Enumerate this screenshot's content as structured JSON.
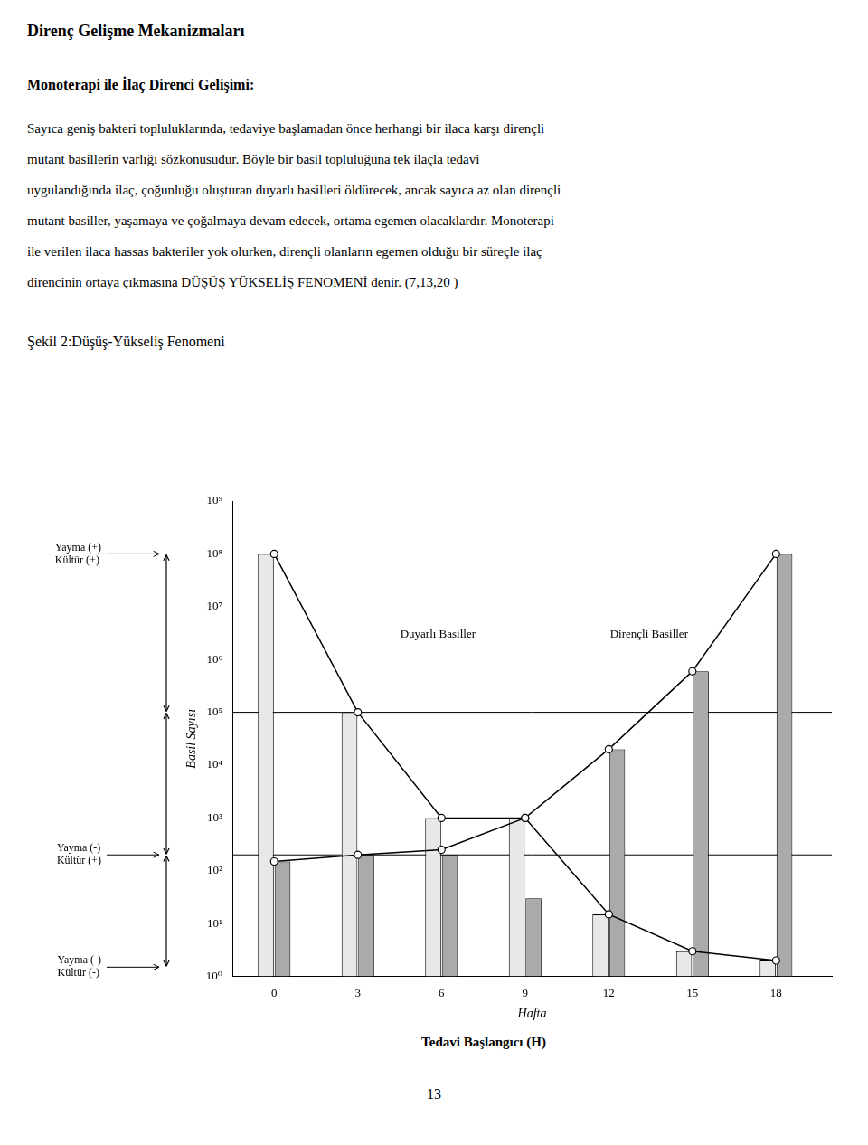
{
  "title": "Direnç Gelişme Mekanizmaları",
  "subtitle": "Monoterapi ile İlaç Direnci Gelişimi:",
  "text_lines": [
    "Sayıca geniş bakteri topluluklarında, tedaviye başlamadan önce herhangi bir ilaca karşı dirençli",
    "mutant basillerin varlığı sözkonusudur. Böyle bir basil topluluğuna tek ilaçla tedavi",
    "uygulandığında ilaç, çoğunluğu oluşturan duyarlı basilleri öldürecek, ancak sayıca az olan dirençli",
    "mutant basiller, yaşamaya ve çoğalmaya devam edecek, ortama egemen olacaklardır. Monoterapi",
    "ile verilen ilaca hassas bakteriler yok olurken, dirençli olanların egemen olduğu bir süreçle ilaç",
    "direncinin ortaya çıkmasına DÜŞÜŞ YÜKSELİŞ FENOMENİ denir. (7,13,20 )"
  ],
  "figure_label": "Şekil 2:Düşüş-Yükseliş Fenomeni",
  "page_number": "13",
  "chart_data": {
    "type": "bar",
    "x": [
      0,
      3,
      6,
      9,
      12,
      15,
      18
    ],
    "xlabel": "Hafta",
    "x_caption": "Tedavi Başlangıcı (H)",
    "ylabel": "Basil Sayısı",
    "series": [
      {
        "name": "Duyarlı Basiller",
        "type": "bar",
        "color": "#e8e8e8",
        "values": [
          100000000,
          100000,
          1000,
          1000,
          15,
          3,
          2
        ]
      },
      {
        "name": "Dirençli Basiller",
        "type": "bar",
        "color": "#aaaaaa",
        "values": [
          150,
          200,
          200,
          30,
          20000,
          600000,
          100000000
        ]
      },
      {
        "type": "line",
        "color": "#000000",
        "marker": "circle",
        "line_style": "solid",
        "values": [
          100000000,
          100000,
          1000,
          1000,
          15,
          3,
          2
        ]
      },
      {
        "type": "line",
        "color": "#000000",
        "marker": "circle",
        "line_style": "solid",
        "values": [
          150,
          200,
          250,
          1000,
          20000,
          600000,
          100000000
        ]
      }
    ],
    "hlines": [
      100000,
      200
    ],
    "left_annotations": [
      {
        "text": "Yayma (+)\nKültür (+)",
        "y": 100000000
      },
      {
        "text": "Yayma (-)\nKültür (+)",
        "y": 200
      },
      {
        "text": "Yayma (-)\nKültür (-)",
        "y": 1.5
      }
    ],
    "xlim": [
      -1.5,
      20
    ],
    "xticks": [
      0,
      3,
      6,
      9,
      12,
      15,
      18
    ],
    "ylim": [
      1,
      1000000000
    ],
    "yticks": [
      {
        "value": 1,
        "label": "10⁰"
      },
      {
        "value": 10,
        "label": "10¹"
      },
      {
        "value": 100,
        "label": "10²"
      },
      {
        "value": 1000,
        "label": "10³"
      },
      {
        "value": 10000,
        "label": "10⁴"
      },
      {
        "value": 100000,
        "label": "10⁵"
      },
      {
        "value": 1000000,
        "label": "10⁶"
      },
      {
        "value": 10000000,
        "label": "10⁷"
      },
      {
        "value": 100000000,
        "label": "10⁸"
      },
      {
        "value": 1000000000,
        "label": "10⁹"
      }
    ],
    "log": "y",
    "grid": false
  }
}
